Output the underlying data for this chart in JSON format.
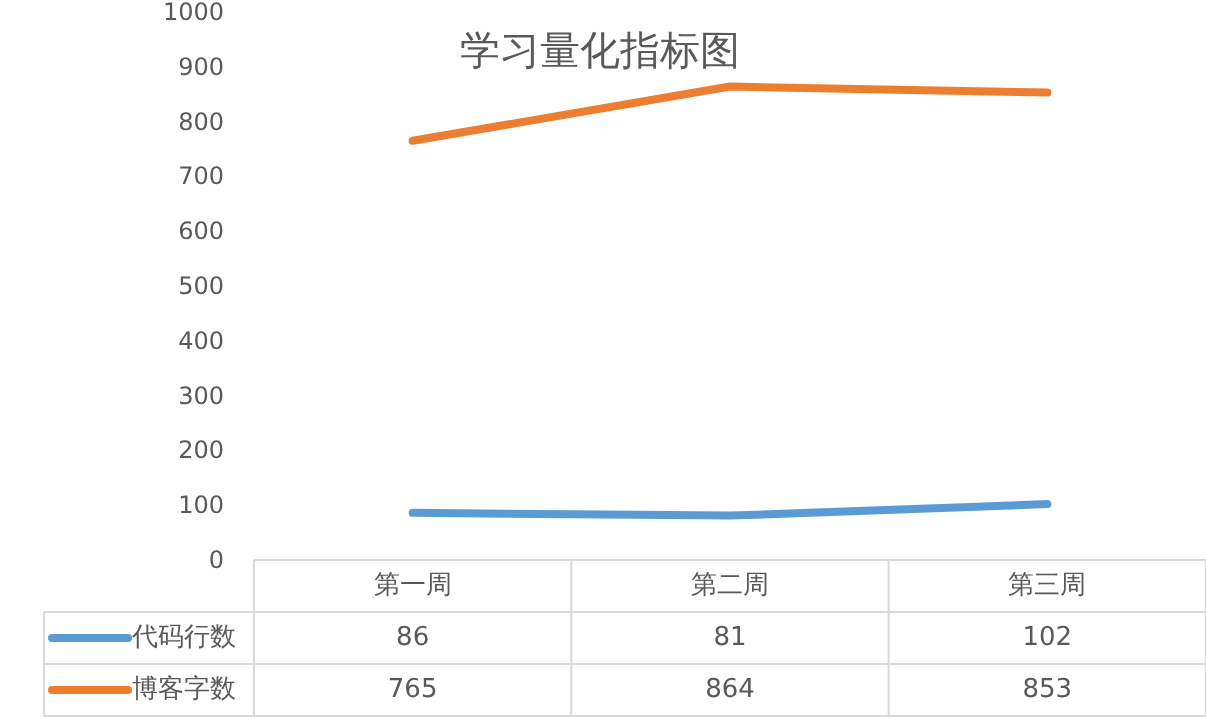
{
  "chart_data": {
    "type": "line",
    "title": "学习量化指标图",
    "categories": [
      "第一周",
      "第二周",
      "第三周"
    ],
    "series": [
      {
        "name": "代码行数",
        "color": "#5b9bd5",
        "values": [
          86,
          81,
          102
        ]
      },
      {
        "name": "博客字数",
        "color": "#ed7d31",
        "values": [
          765,
          864,
          853
        ]
      }
    ],
    "ylim": [
      0,
      1000
    ],
    "yticks": [
      0,
      100,
      200,
      300,
      400,
      500,
      600,
      700,
      800,
      900,
      1000
    ],
    "data_labels": true,
    "legend": "bottom",
    "line_style": "solid",
    "marker": "none"
  }
}
